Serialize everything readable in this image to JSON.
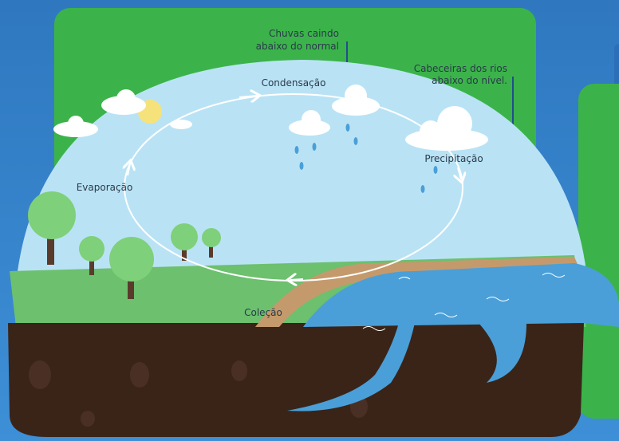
{
  "callouts": [
    {
      "lines": [
        "Chuvas caindo",
        "abaixo do normal"
      ]
    },
    {
      "lines": [
        "Cabeceiras dos rios",
        "abaixo do nível."
      ]
    }
  ],
  "stages": {
    "condensation": "Condensação",
    "evaporation": "Evaporação",
    "precipitation": "Precipitação",
    "collection": "Coleção"
  }
}
